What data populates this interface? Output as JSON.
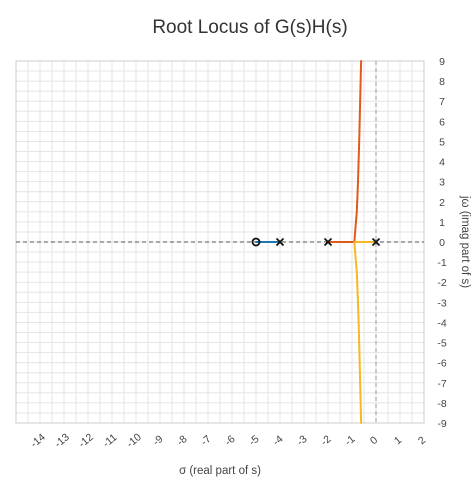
{
  "chart_data": {
    "type": "line",
    "title": "Root Locus of G(s)H(s)",
    "xlabel": "σ (real part of s)",
    "ylabel": "jω (imag part of s)",
    "xlim": [
      -15,
      2
    ],
    "ylim": [
      -9,
      9
    ],
    "x_ticks": [
      "-14",
      "-13",
      "-12",
      "-11",
      "-10",
      "-9",
      "-8",
      "-7",
      "-6",
      "-5",
      "-4",
      "-3",
      "-2",
      "-1",
      "0",
      "1",
      "2"
    ],
    "y_ticks": [
      "9",
      "8",
      "7",
      "6",
      "5",
      "4",
      "3",
      "2",
      "1",
      "0",
      "-1",
      "-2",
      "-3",
      "-4",
      "-5",
      "-6",
      "-7",
      "-8",
      "-9"
    ],
    "grid": true,
    "reference_lines": {
      "real_axis": 0,
      "imag_axis": 0,
      "style": "dashed"
    },
    "poles": [
      {
        "x": -4,
        "y": 0
      },
      {
        "x": -2,
        "y": 0
      },
      {
        "x": 0,
        "y": 0
      }
    ],
    "zeros": [
      {
        "x": -5,
        "y": 0
      }
    ],
    "series": [
      {
        "color": "#1f77b4",
        "points": [
          [
            -4,
            0
          ],
          [
            -4.5,
            0
          ],
          [
            -5,
            0
          ]
        ]
      },
      {
        "color": "#e05a1c",
        "points": [
          [
            -2,
            0
          ],
          [
            -1.5,
            0
          ],
          [
            -0.9,
            0
          ],
          [
            -0.87,
            0.5
          ],
          [
            -0.8,
            1.5
          ],
          [
            -0.75,
            3
          ],
          [
            -0.7,
            5
          ],
          [
            -0.65,
            7.5
          ],
          [
            -0.62,
            9
          ]
        ]
      },
      {
        "color": "#f5b921",
        "points": [
          [
            0,
            0
          ],
          [
            -0.4,
            0
          ],
          [
            -0.9,
            0
          ],
          [
            -0.87,
            -0.5
          ],
          [
            -0.8,
            -1.5
          ],
          [
            -0.75,
            -3
          ],
          [
            -0.7,
            -5
          ],
          [
            -0.65,
            -7.5
          ],
          [
            -0.62,
            -9
          ]
        ]
      }
    ]
  }
}
